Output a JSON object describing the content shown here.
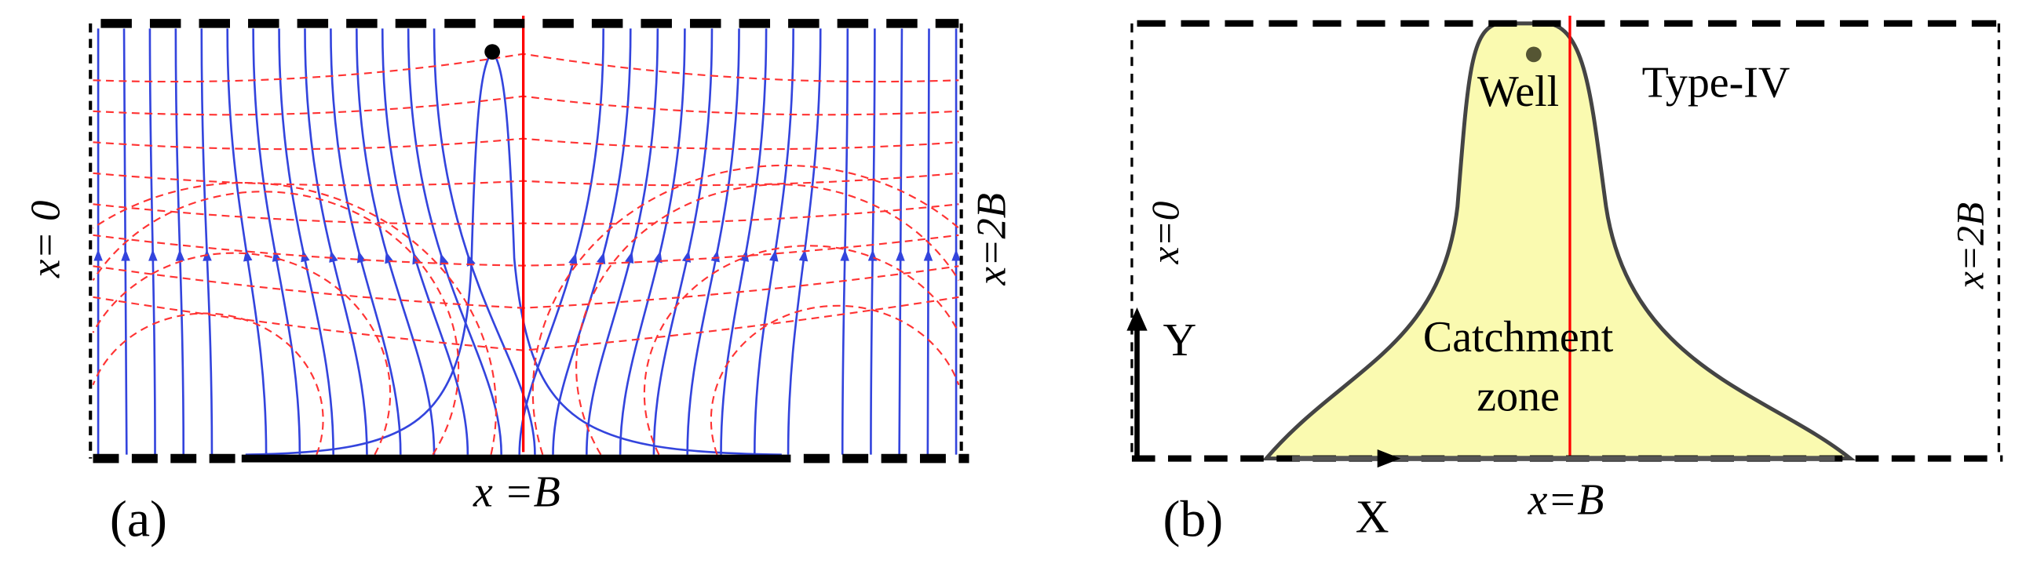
{
  "panels": [
    {
      "label": "(a)",
      "bottom_label": "x =B",
      "left_label": "x= 0",
      "right_label": "x=2B"
    },
    {
      "label": "(b)",
      "bottom_label": "x=B",
      "left_label": "x=0",
      "right_label": "x=2B",
      "x_axis": "X",
      "y_axis": "Y",
      "well": "Well",
      "type": "Type-IV",
      "zone_line1": "Catchment",
      "zone_line2": "zone"
    }
  ]
}
